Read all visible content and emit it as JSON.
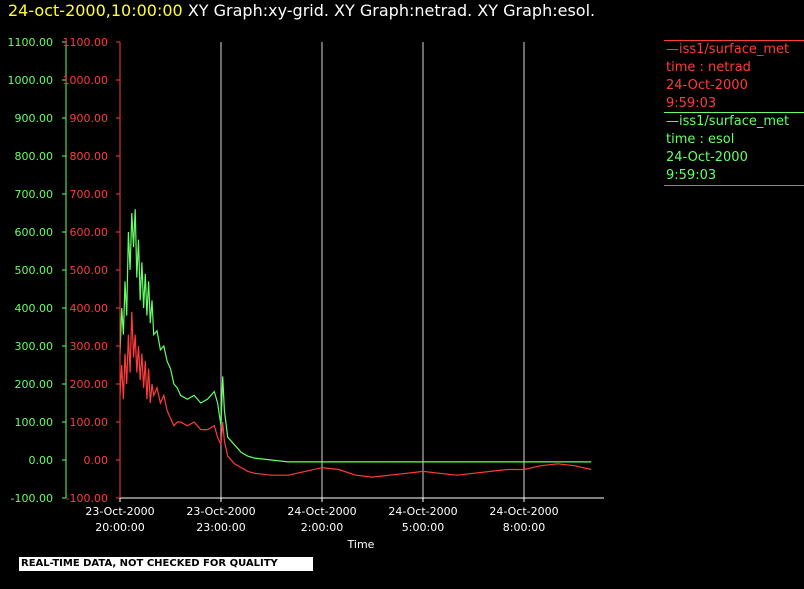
{
  "header": {
    "timestamp": "24-oct-2000,10:00:00",
    "graphs": "XY Graph:xy-grid.  XY Graph:netrad.  XY Graph:esol."
  },
  "legend": {
    "netrad": {
      "line1": "—iss1/surface_met",
      "line2": "time : netrad",
      "line3": "24-Oct-2000",
      "line4": "9:59:03",
      "color": "#ff3b3b"
    },
    "esol": {
      "line1": "—iss1/surface_met",
      "line2": "time : esol",
      "line3": "24-Oct-2000",
      "line4": "9:59:03",
      "color": "#66ff66"
    }
  },
  "footer": {
    "quality_note": "REAL-TIME DATA, NOT CHECKED FOR QUALITY"
  },
  "chart_data": {
    "type": "line",
    "title": "",
    "xlabel": "Time",
    "ylabel": "",
    "x_ticks": [
      {
        "hours": 0,
        "line1": "23-Oct-2000",
        "line2": "20:00:00"
      },
      {
        "hours": 3,
        "line1": "23-Oct-2000",
        "line2": "23:00:00"
      },
      {
        "hours": 6,
        "line1": "24-Oct-2000",
        "line2": "2:00:00"
      },
      {
        "hours": 9,
        "line1": "24-Oct-2000",
        "line2": "5:00:00"
      },
      {
        "hours": 12,
        "line1": "24-Oct-2000",
        "line2": "8:00:00"
      }
    ],
    "xlim": [
      0,
      14.2
    ],
    "ylim": [
      -100,
      1100
    ],
    "y_ticks": [
      -100,
      0,
      100,
      200,
      300,
      400,
      500,
      600,
      700,
      800,
      900,
      1000,
      1100
    ],
    "y_tick_labels": [
      "-100.00",
      "0.00",
      "100.00",
      "200.00",
      "300.00",
      "400.00",
      "500.00",
      "600.00",
      "700.00",
      "800.00",
      "900.00",
      "1000.00",
      "1100.00"
    ],
    "vertical_gridlines": true,
    "series": [
      {
        "name": "esol",
        "color": "#66ff66",
        "points": [
          [
            0.0,
            280
          ],
          [
            0.05,
            400
          ],
          [
            0.1,
            330
          ],
          [
            0.15,
            470
          ],
          [
            0.2,
            380
          ],
          [
            0.25,
            600
          ],
          [
            0.3,
            500
          ],
          [
            0.35,
            650
          ],
          [
            0.4,
            560
          ],
          [
            0.45,
            660
          ],
          [
            0.5,
            480
          ],
          [
            0.55,
            580
          ],
          [
            0.6,
            420
          ],
          [
            0.65,
            520
          ],
          [
            0.7,
            400
          ],
          [
            0.75,
            490
          ],
          [
            0.8,
            380
          ],
          [
            0.85,
            470
          ],
          [
            0.9,
            360
          ],
          [
            0.95,
            420
          ],
          [
            1.0,
            330
          ],
          [
            1.1,
            340
          ],
          [
            1.2,
            290
          ],
          [
            1.3,
            300
          ],
          [
            1.4,
            260
          ],
          [
            1.5,
            240
          ],
          [
            1.6,
            200
          ],
          [
            1.7,
            190
          ],
          [
            1.8,
            170
          ],
          [
            2.0,
            160
          ],
          [
            2.2,
            170
          ],
          [
            2.4,
            150
          ],
          [
            2.6,
            160
          ],
          [
            2.8,
            180
          ],
          [
            2.9,
            150
          ],
          [
            3.0,
            90
          ],
          [
            3.05,
            220
          ],
          [
            3.1,
            130
          ],
          [
            3.2,
            60
          ],
          [
            3.4,
            40
          ],
          [
            3.6,
            20
          ],
          [
            3.8,
            10
          ],
          [
            4.0,
            5
          ],
          [
            4.5,
            0
          ],
          [
            5.0,
            -5
          ],
          [
            6.0,
            -5
          ],
          [
            7.0,
            -5
          ],
          [
            8.0,
            -5
          ],
          [
            9.0,
            -5
          ],
          [
            10.0,
            -5
          ],
          [
            11.0,
            -5
          ],
          [
            12.0,
            -5
          ],
          [
            13.0,
            -5
          ],
          [
            14.0,
            -5
          ]
        ]
      },
      {
        "name": "netrad",
        "color": "#ff3b3b",
        "points": [
          [
            0.0,
            170
          ],
          [
            0.05,
            250
          ],
          [
            0.1,
            160
          ],
          [
            0.15,
            280
          ],
          [
            0.2,
            200
          ],
          [
            0.25,
            330
          ],
          [
            0.3,
            230
          ],
          [
            0.35,
            390
          ],
          [
            0.4,
            270
          ],
          [
            0.45,
            330
          ],
          [
            0.5,
            230
          ],
          [
            0.55,
            300
          ],
          [
            0.6,
            210
          ],
          [
            0.65,
            280
          ],
          [
            0.7,
            190
          ],
          [
            0.75,
            260
          ],
          [
            0.8,
            160
          ],
          [
            0.85,
            240
          ],
          [
            0.9,
            150
          ],
          [
            0.95,
            200
          ],
          [
            1.0,
            170
          ],
          [
            1.1,
            190
          ],
          [
            1.2,
            150
          ],
          [
            1.3,
            170
          ],
          [
            1.4,
            130
          ],
          [
            1.5,
            110
          ],
          [
            1.6,
            90
          ],
          [
            1.7,
            100
          ],
          [
            1.8,
            100
          ],
          [
            2.0,
            90
          ],
          [
            2.2,
            100
          ],
          [
            2.4,
            80
          ],
          [
            2.6,
            80
          ],
          [
            2.8,
            90
          ],
          [
            2.9,
            60
          ],
          [
            3.0,
            40
          ],
          [
            3.05,
            100
          ],
          [
            3.1,
            50
          ],
          [
            3.2,
            10
          ],
          [
            3.4,
            -10
          ],
          [
            3.6,
            -20
          ],
          [
            3.8,
            -30
          ],
          [
            4.0,
            -35
          ],
          [
            4.5,
            -40
          ],
          [
            5.0,
            -40
          ],
          [
            5.5,
            -30
          ],
          [
            6.0,
            -20
          ],
          [
            6.5,
            -25
          ],
          [
            7.0,
            -40
          ],
          [
            7.5,
            -45
          ],
          [
            8.0,
            -40
          ],
          [
            8.5,
            -35
          ],
          [
            9.0,
            -30
          ],
          [
            9.5,
            -35
          ],
          [
            10.0,
            -40
          ],
          [
            10.5,
            -35
          ],
          [
            11.0,
            -30
          ],
          [
            11.5,
            -25
          ],
          [
            12.0,
            -25
          ],
          [
            12.5,
            -15
          ],
          [
            13.0,
            -10
          ],
          [
            13.5,
            -15
          ],
          [
            14.0,
            -25
          ]
        ]
      }
    ]
  }
}
